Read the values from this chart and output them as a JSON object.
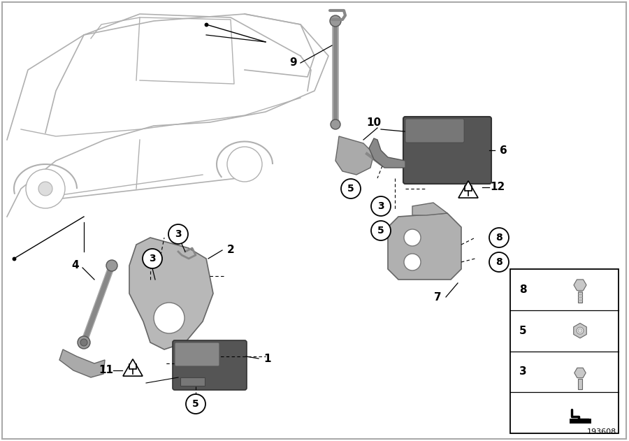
{
  "fig_width": 9.0,
  "fig_height": 6.31,
  "dpi": 100,
  "bg": "#ffffff",
  "diagram_id": "193608",
  "car_lines_color": "#b0b0b0",
  "part_color": "#aaaaaa",
  "part_dark": "#666666",
  "part_mid": "#999999"
}
